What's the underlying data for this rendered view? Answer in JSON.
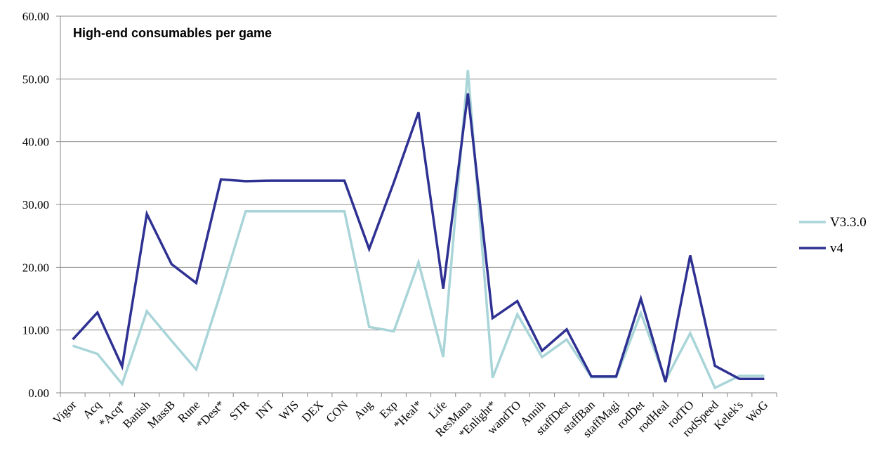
{
  "chart_data": {
    "type": "line",
    "title": "High-end consumables per game",
    "xlabel": "",
    "ylabel": "",
    "ylim": [
      0,
      60
    ],
    "yticks": [
      "0.00",
      "10.00",
      "20.00",
      "30.00",
      "40.00",
      "50.00",
      "60.00"
    ],
    "grid": true,
    "legend_position": "right",
    "categories": [
      "Vigor",
      "Acq",
      "*Acq*",
      "Banish",
      "MassB",
      "Rune",
      "*Dest*",
      "STR",
      "INT",
      "WIS",
      "DEX",
      "CON",
      "Aug",
      "Exp",
      "*Heal*",
      "Life",
      "ResMana",
      "*Enlight*",
      "wandTO",
      "Annih",
      "staffDest",
      "staffBan",
      "staffMagi",
      "rodDet",
      "rodHeal",
      "rodTO",
      "rodSpeed",
      "Kelek's",
      "WoG"
    ],
    "series": [
      {
        "name": "V3.3.0",
        "color": "#a9d5d8",
        "values": [
          7.5,
          6.2,
          1.4,
          13.0,
          8.3,
          3.7,
          16.0,
          28.9,
          28.9,
          28.9,
          28.9,
          28.9,
          10.5,
          9.8,
          20.8,
          5.7,
          51.4,
          2.4,
          12.5,
          5.7,
          8.5,
          2.5,
          2.5,
          12.7,
          2.0,
          9.5,
          0.8,
          2.7,
          2.7
        ]
      },
      {
        "name": "v4",
        "color": "#2e3192",
        "values": [
          8.5,
          12.8,
          4.2,
          28.5,
          20.5,
          17.5,
          34.0,
          33.7,
          33.8,
          33.8,
          33.8,
          33.8,
          22.9,
          33.5,
          44.7,
          16.6,
          47.7,
          11.9,
          14.6,
          6.7,
          10.1,
          2.6,
          2.6,
          15.0,
          1.7,
          21.9,
          4.3,
          2.2,
          2.2
        ]
      }
    ]
  }
}
